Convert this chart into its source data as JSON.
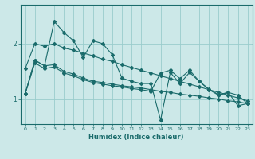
{
  "title": "",
  "xlabel": "Humidex (Indice chaleur)",
  "ylabel": "",
  "background_color": "#cce8e8",
  "line_color": "#1a6b6b",
  "grid_color": "#99cccc",
  "x_ticks": [
    0,
    1,
    2,
    3,
    4,
    5,
    6,
    7,
    8,
    9,
    10,
    11,
    12,
    13,
    14,
    15,
    16,
    17,
    18,
    19,
    20,
    21,
    22,
    23
  ],
  "y_ticks": [
    1,
    2
  ],
  "xlim": [
    -0.5,
    23.5
  ],
  "ylim": [
    0.55,
    2.7
  ],
  "lines": [
    [
      1.1,
      1.7,
      1.6,
      2.4,
      2.2,
      2.05,
      1.75,
      2.05,
      2.0,
      1.8,
      1.38,
      1.32,
      1.28,
      1.28,
      0.62,
      1.48,
      1.28,
      1.48,
      1.32,
      1.18,
      1.08,
      1.12,
      0.88,
      0.92
    ],
    [
      1.1,
      1.7,
      1.6,
      1.62,
      1.5,
      1.45,
      1.38,
      1.32,
      1.3,
      1.27,
      1.24,
      1.22,
      1.2,
      1.17,
      1.14,
      1.12,
      1.09,
      1.07,
      1.05,
      1.02,
      1.0,
      0.97,
      0.95,
      0.92
    ],
    [
      1.1,
      1.65,
      1.55,
      1.58,
      1.47,
      1.42,
      1.35,
      1.3,
      1.27,
      1.24,
      1.22,
      1.19,
      1.17,
      1.14,
      1.47,
      1.52,
      1.37,
      1.52,
      1.32,
      1.17,
      1.07,
      1.12,
      1.07,
      0.92
    ],
    [
      1.55,
      2.0,
      1.95,
      2.0,
      1.92,
      1.88,
      1.83,
      1.78,
      1.72,
      1.68,
      1.62,
      1.57,
      1.52,
      1.47,
      1.42,
      1.37,
      1.32,
      1.27,
      1.22,
      1.17,
      1.12,
      1.07,
      1.02,
      0.97
    ]
  ]
}
